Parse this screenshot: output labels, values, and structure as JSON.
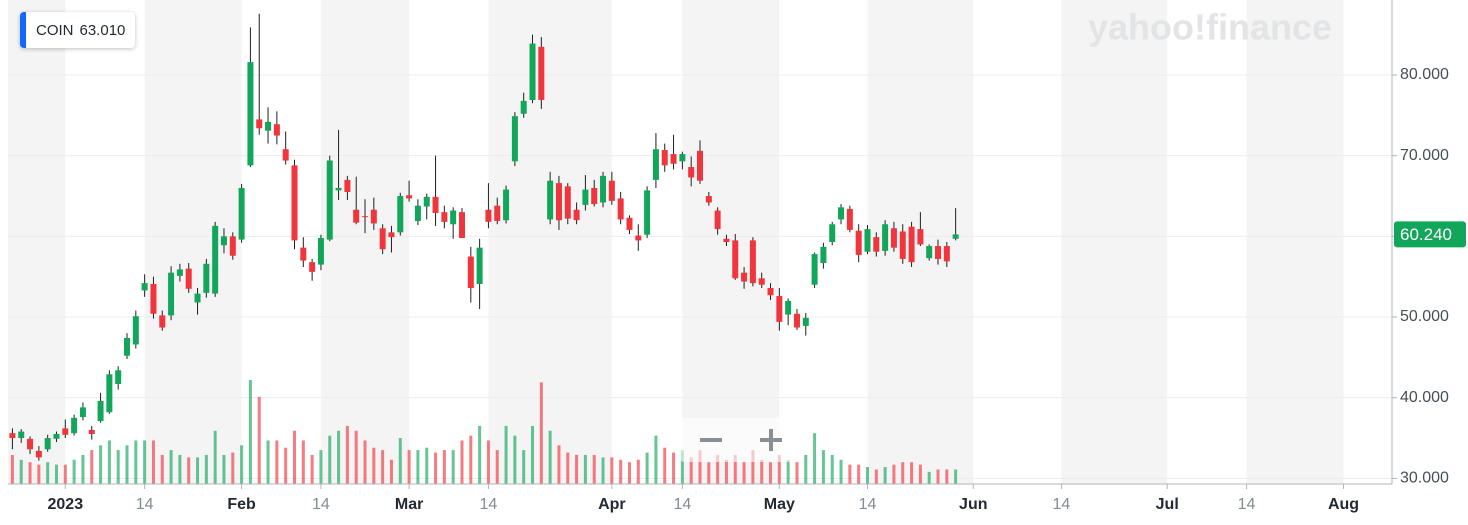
{
  "chart_data": {
    "type": "candlestick",
    "symbol": "COIN",
    "quote": "63.010",
    "watermark": "yahoo!finance",
    "last_price_label": "60.240",
    "up_color": "#12a65a",
    "down_color": "#f0353c",
    "grid": true,
    "xlim": [
      -0.5,
      156.5
    ],
    "xticks": [
      {
        "value": 6,
        "label": "2023"
      },
      {
        "value": 15,
        "label": "14"
      },
      {
        "value": 26,
        "label": "Feb"
      },
      {
        "value": 35,
        "label": "14"
      },
      {
        "value": 45,
        "label": "Mar"
      },
      {
        "value": 54,
        "label": "14"
      },
      {
        "value": 68,
        "label": "Apr"
      },
      {
        "value": 76,
        "label": "14"
      },
      {
        "value": 87,
        "label": "May"
      },
      {
        "value": 97,
        "label": "14"
      },
      {
        "value": 109,
        "label": "Jun"
      },
      {
        "value": 119,
        "label": "14"
      },
      {
        "value": 131,
        "label": "Jul"
      },
      {
        "value": 140,
        "label": "14"
      },
      {
        "value": 151,
        "label": "Aug"
      }
    ],
    "ylim": [
      29.3,
      89.3
    ],
    "yticks": [
      {
        "value": 30,
        "label": "30.000"
      },
      {
        "value": 40,
        "label": "40.000"
      },
      {
        "value": 50,
        "label": "50.000"
      },
      {
        "value": 60,
        "label": "60.000"
      },
      {
        "value": 70,
        "label": "70.000"
      },
      {
        "value": 80,
        "label": "80.000"
      }
    ],
    "y2lim": [
      0,
      200
    ],
    "open": [
      35.6,
      35.0,
      34.9,
      33.4,
      33.6,
      34.9,
      36.2,
      35.6,
      37.6,
      36.0,
      37.1,
      38.2,
      41.7,
      45.2,
      46.6,
      53.3,
      54.1,
      50.2,
      50.2,
      55.1,
      56.0,
      51.8,
      53.0,
      52.9,
      58.9,
      60.0,
      59.6,
      68.8,
      74.5,
      73.1,
      73.9,
      70.8,
      68.8,
      58.6,
      56.8,
      56.5,
      59.6,
      65.7,
      67.0,
      63.3,
      62.5,
      63.3,
      61.0,
      60.5,
      60.5,
      65.1,
      61.9,
      63.7,
      64.9,
      63.0,
      61.5,
      63.0,
      57.5,
      54.1,
      63.3,
      63.8,
      62.0,
      69.3,
      75.2,
      76.9,
      83.5,
      62.1,
      66.6,
      66.2,
      63.3,
      63.9,
      66.0,
      64.2,
      66.9,
      64.7,
      62.3,
      60.1,
      60.2,
      67.0,
      70.7,
      70.2,
      69.3,
      68.6,
      70.6,
      65.0,
      63.2,
      59.7,
      59.5,
      55.5,
      59.5,
      54.8,
      53.6,
      52.6,
      50.3,
      50.4,
      48.9,
      54.0,
      56.7,
      59.3,
      62.1,
      63.4,
      60.7,
      58.1,
      59.9,
      58.2,
      61.0,
      60.6,
      61.2,
      60.9,
      57.3,
      58.8,
      58.8,
      59.7
    ],
    "high": [
      36.2,
      36.1,
      35.2,
      34.0,
      35.4,
      35.8,
      37.3,
      37.9,
      39.4,
      36.5,
      40.6,
      43.4,
      43.9,
      48.0,
      50.8,
      55.3,
      55.0,
      50.8,
      56.3,
      56.6,
      56.7,
      53.6,
      57.2,
      61.8,
      61.0,
      60.5,
      66.5,
      85.9,
      87.6,
      76.0,
      75.5,
      73.0,
      69.5,
      59.9,
      57.2,
      60.2,
      70.0,
      73.2,
      67.5,
      67.4,
      64.6,
      64.8,
      61.5,
      61.3,
      65.4,
      66.9,
      64.6,
      65.3,
      70.0,
      63.8,
      63.6,
      63.5,
      58.7,
      59.7,
      66.6,
      64.8,
      66.3,
      75.4,
      77.8,
      85.0,
      84.7,
      68.0,
      67.5,
      66.6,
      64.2,
      67.6,
      67.0,
      68.0,
      68.0,
      65.5,
      62.6,
      61.5,
      66.2,
      72.8,
      71.5,
      72.6,
      70.5,
      69.9,
      71.9,
      65.5,
      63.6,
      60.2,
      60.3,
      56.2,
      59.9,
      55.5,
      54.2,
      53.6,
      52.3,
      51.0,
      50.5,
      58.0,
      59.2,
      61.8,
      64.0,
      63.8,
      61.5,
      61.4,
      60.5,
      62.0,
      61.8,
      61.5,
      61.8,
      63.0,
      59.0,
      59.6,
      59.3,
      63.5
    ],
    "low": [
      33.6,
      34.4,
      33.0,
      32.2,
      33.3,
      34.5,
      35.0,
      35.3,
      37.2,
      34.8,
      36.9,
      38.0,
      41.0,
      44.8,
      46.1,
      52.5,
      49.8,
      48.3,
      49.6,
      54.4,
      53.0,
      50.3,
      52.4,
      52.5,
      57.9,
      57.1,
      59.2,
      68.6,
      72.6,
      71.5,
      71.4,
      68.9,
      58.4,
      56.2,
      54.5,
      55.8,
      59.4,
      64.5,
      64.5,
      61.5,
      60.4,
      60.8,
      57.8,
      58.0,
      60.1,
      64.3,
      61.4,
      62.1,
      61.3,
      61.0,
      59.7,
      59.8,
      51.8,
      51.0,
      61.0,
      61.5,
      61.6,
      68.7,
      74.7,
      76.5,
      75.8,
      61.5,
      60.8,
      61.5,
      61.5,
      63.2,
      63.7,
      63.6,
      63.9,
      61.5,
      60.3,
      58.2,
      59.8,
      66.0,
      68.0,
      68.3,
      68.3,
      66.2,
      66.5,
      63.8,
      60.2,
      58.8,
      54.6,
      53.5,
      53.8,
      53.6,
      52.1,
      48.3,
      49.0,
      48.4,
      47.7,
      53.6,
      56.0,
      58.9,
      61.5,
      60.5,
      56.8,
      57.8,
      57.5,
      57.6,
      58.1,
      56.6,
      56.2,
      58.8,
      57.0,
      56.5,
      56.2,
      59.5
    ],
    "close": [
      35.0,
      35.8,
      33.6,
      32.6,
      35.0,
      35.5,
      35.4,
      37.5,
      38.8,
      35.5,
      39.6,
      42.9,
      43.4,
      47.4,
      50.1,
      54.2,
      50.4,
      48.7,
      55.5,
      55.9,
      53.5,
      52.9,
      56.6,
      61.3,
      60.0,
      57.6,
      66.0,
      81.6,
      73.4,
      74.2,
      72.5,
      69.4,
      59.5,
      57.0,
      55.6,
      59.8,
      69.4,
      66.0,
      65.5,
      61.7,
      62.4,
      61.6,
      58.4,
      59.9,
      65.0,
      64.7,
      63.8,
      64.9,
      62.9,
      61.8,
      63.2,
      59.8,
      53.6,
      58.6,
      61.8,
      61.9,
      65.8,
      74.9,
      76.8,
      83.9,
      76.9,
      66.9,
      62.0,
      62.2,
      62.0,
      65.8,
      64.0,
      67.5,
      64.4,
      62.1,
      60.8,
      59.5,
      65.7,
      70.8,
      68.8,
      69.0,
      70.2,
      67.3,
      66.9,
      64.2,
      60.9,
      59.3,
      54.8,
      54.4,
      54.2,
      54.0,
      52.7,
      49.4,
      52.0,
      48.7,
      49.9,
      57.8,
      58.7,
      61.5,
      63.6,
      60.8,
      57.7,
      60.9,
      58.1,
      61.5,
      58.6,
      57.2,
      56.8,
      59.0,
      58.8,
      57.2,
      56.9,
      60.24
    ],
    "volume": [
      12,
      10,
      9,
      8,
      9,
      8,
      8,
      10,
      12,
      14,
      16,
      18,
      14,
      16,
      18,
      18,
      18,
      12,
      14,
      12,
      11,
      11,
      12,
      22,
      12,
      13,
      16,
      43,
      36,
      18,
      18,
      15,
      22,
      18,
      12,
      14,
      20,
      22,
      24,
      22,
      18,
      15,
      14,
      10,
      19,
      14,
      14,
      15,
      13,
      14,
      14,
      18,
      20,
      24,
      18,
      14,
      24,
      20,
      14,
      24,
      42,
      22,
      16,
      13,
      12,
      12,
      12,
      11,
      11,
      10,
      9,
      10,
      13,
      20,
      15,
      13,
      14,
      11,
      14,
      9,
      12,
      10,
      12,
      9,
      14,
      10,
      9,
      12,
      10,
      9,
      12,
      21,
      14,
      12,
      10,
      8,
      8,
      7,
      6,
      7,
      8,
      9,
      9,
      8,
      5,
      6,
      6,
      6
    ]
  }
}
